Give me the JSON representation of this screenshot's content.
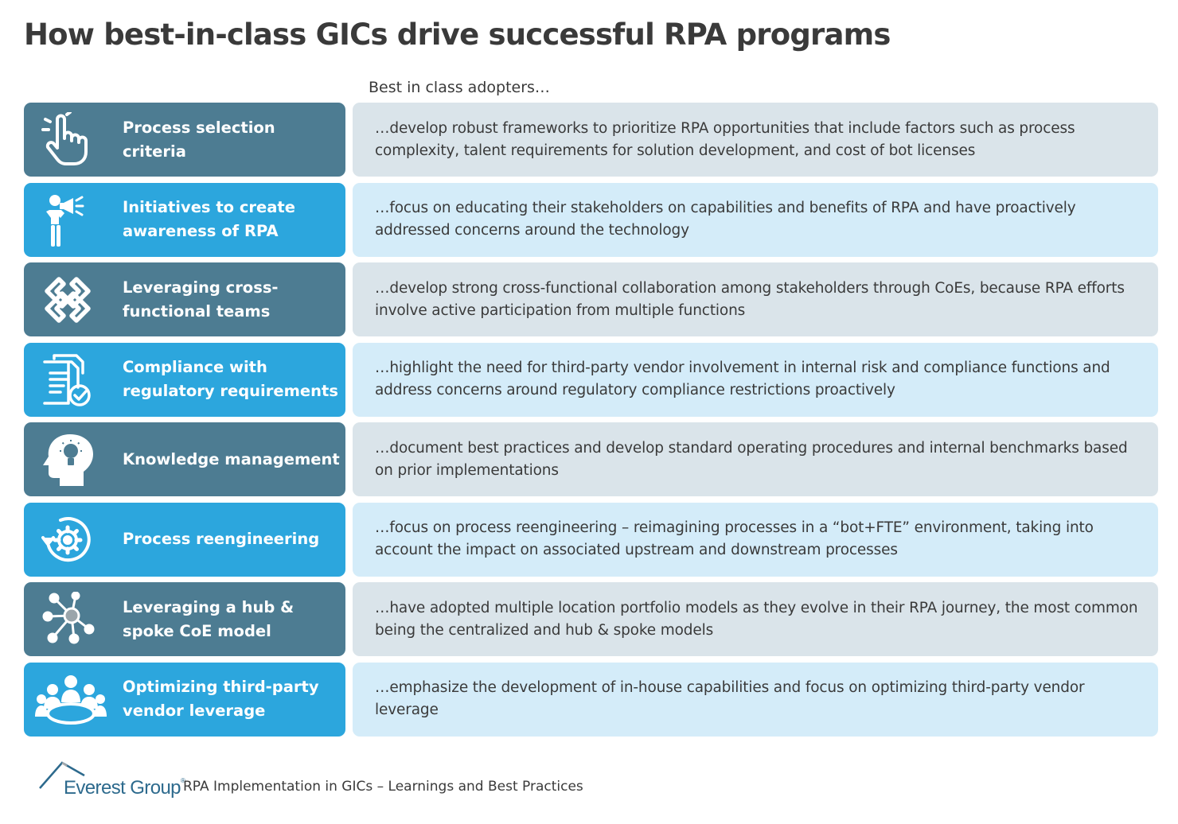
{
  "title": "How best-in-class GICs drive successful RPA programs",
  "subheading": "Best in class adopters…",
  "rows": [
    {
      "label": "Process selection criteria",
      "icon": "pointing-hand-icon",
      "tone": "dark",
      "description": "…develop robust frameworks to prioritize RPA opportunities that include factors such as process complexity, talent requirements for solution development, and cost of bot licenses"
    },
    {
      "label": "Initiatives to create awareness of RPA",
      "icon": "megaphone-person-icon",
      "tone": "blue",
      "description": "…focus on educating their stakeholders on capabilities and benefits of RPA and have proactively addressed concerns around the technology"
    },
    {
      "label": "Leveraging cross-functional teams",
      "icon": "interlocked-links-icon",
      "tone": "dark",
      "description": "…develop strong cross-functional collaboration among stakeholders through CoEs, because RPA efforts involve active participation from multiple functions"
    },
    {
      "label": "Compliance with regulatory requirements",
      "icon": "document-checkmark-icon",
      "tone": "blue",
      "description": "…highlight the need for third-party vendor involvement in internal risk and compliance functions and address concerns around regulatory compliance restrictions proactively"
    },
    {
      "label": "Knowledge management",
      "icon": "head-lightbulb-icon",
      "tone": "dark",
      "description": "…document best practices and develop standard operating procedures and internal benchmarks based on prior implementations"
    },
    {
      "label": "Process reengineering",
      "icon": "gear-cycle-icon",
      "tone": "blue",
      "description": "…focus on process reengineering – reimagining processes in a “bot+FTE” environment, taking into account the impact on associated upstream and downstream processes"
    },
    {
      "label": "Leveraging a hub & spoke CoE model",
      "icon": "hub-spoke-icon",
      "tone": "dark",
      "description": "…have adopted multiple location portfolio models as they evolve in their RPA journey, the most common being the centralized and hub & spoke models"
    },
    {
      "label": "Optimizing third-party vendor leverage",
      "icon": "meeting-table-icon",
      "tone": "blue",
      "description": "…emphasize the development of in-house capabilities and focus on optimizing third-party vendor leverage"
    }
  ],
  "footer": {
    "logo_text": "Everest Group",
    "logo_mark": "®",
    "text": "RPA Implementation in GICs – Learnings and Best Practices"
  },
  "colors": {
    "dark_label": "#4d7c92",
    "blue_label": "#2ca6dd",
    "dark_panel": "#dae4ea",
    "blue_panel": "#d4ecf9",
    "logo": "#2d6a8d"
  }
}
